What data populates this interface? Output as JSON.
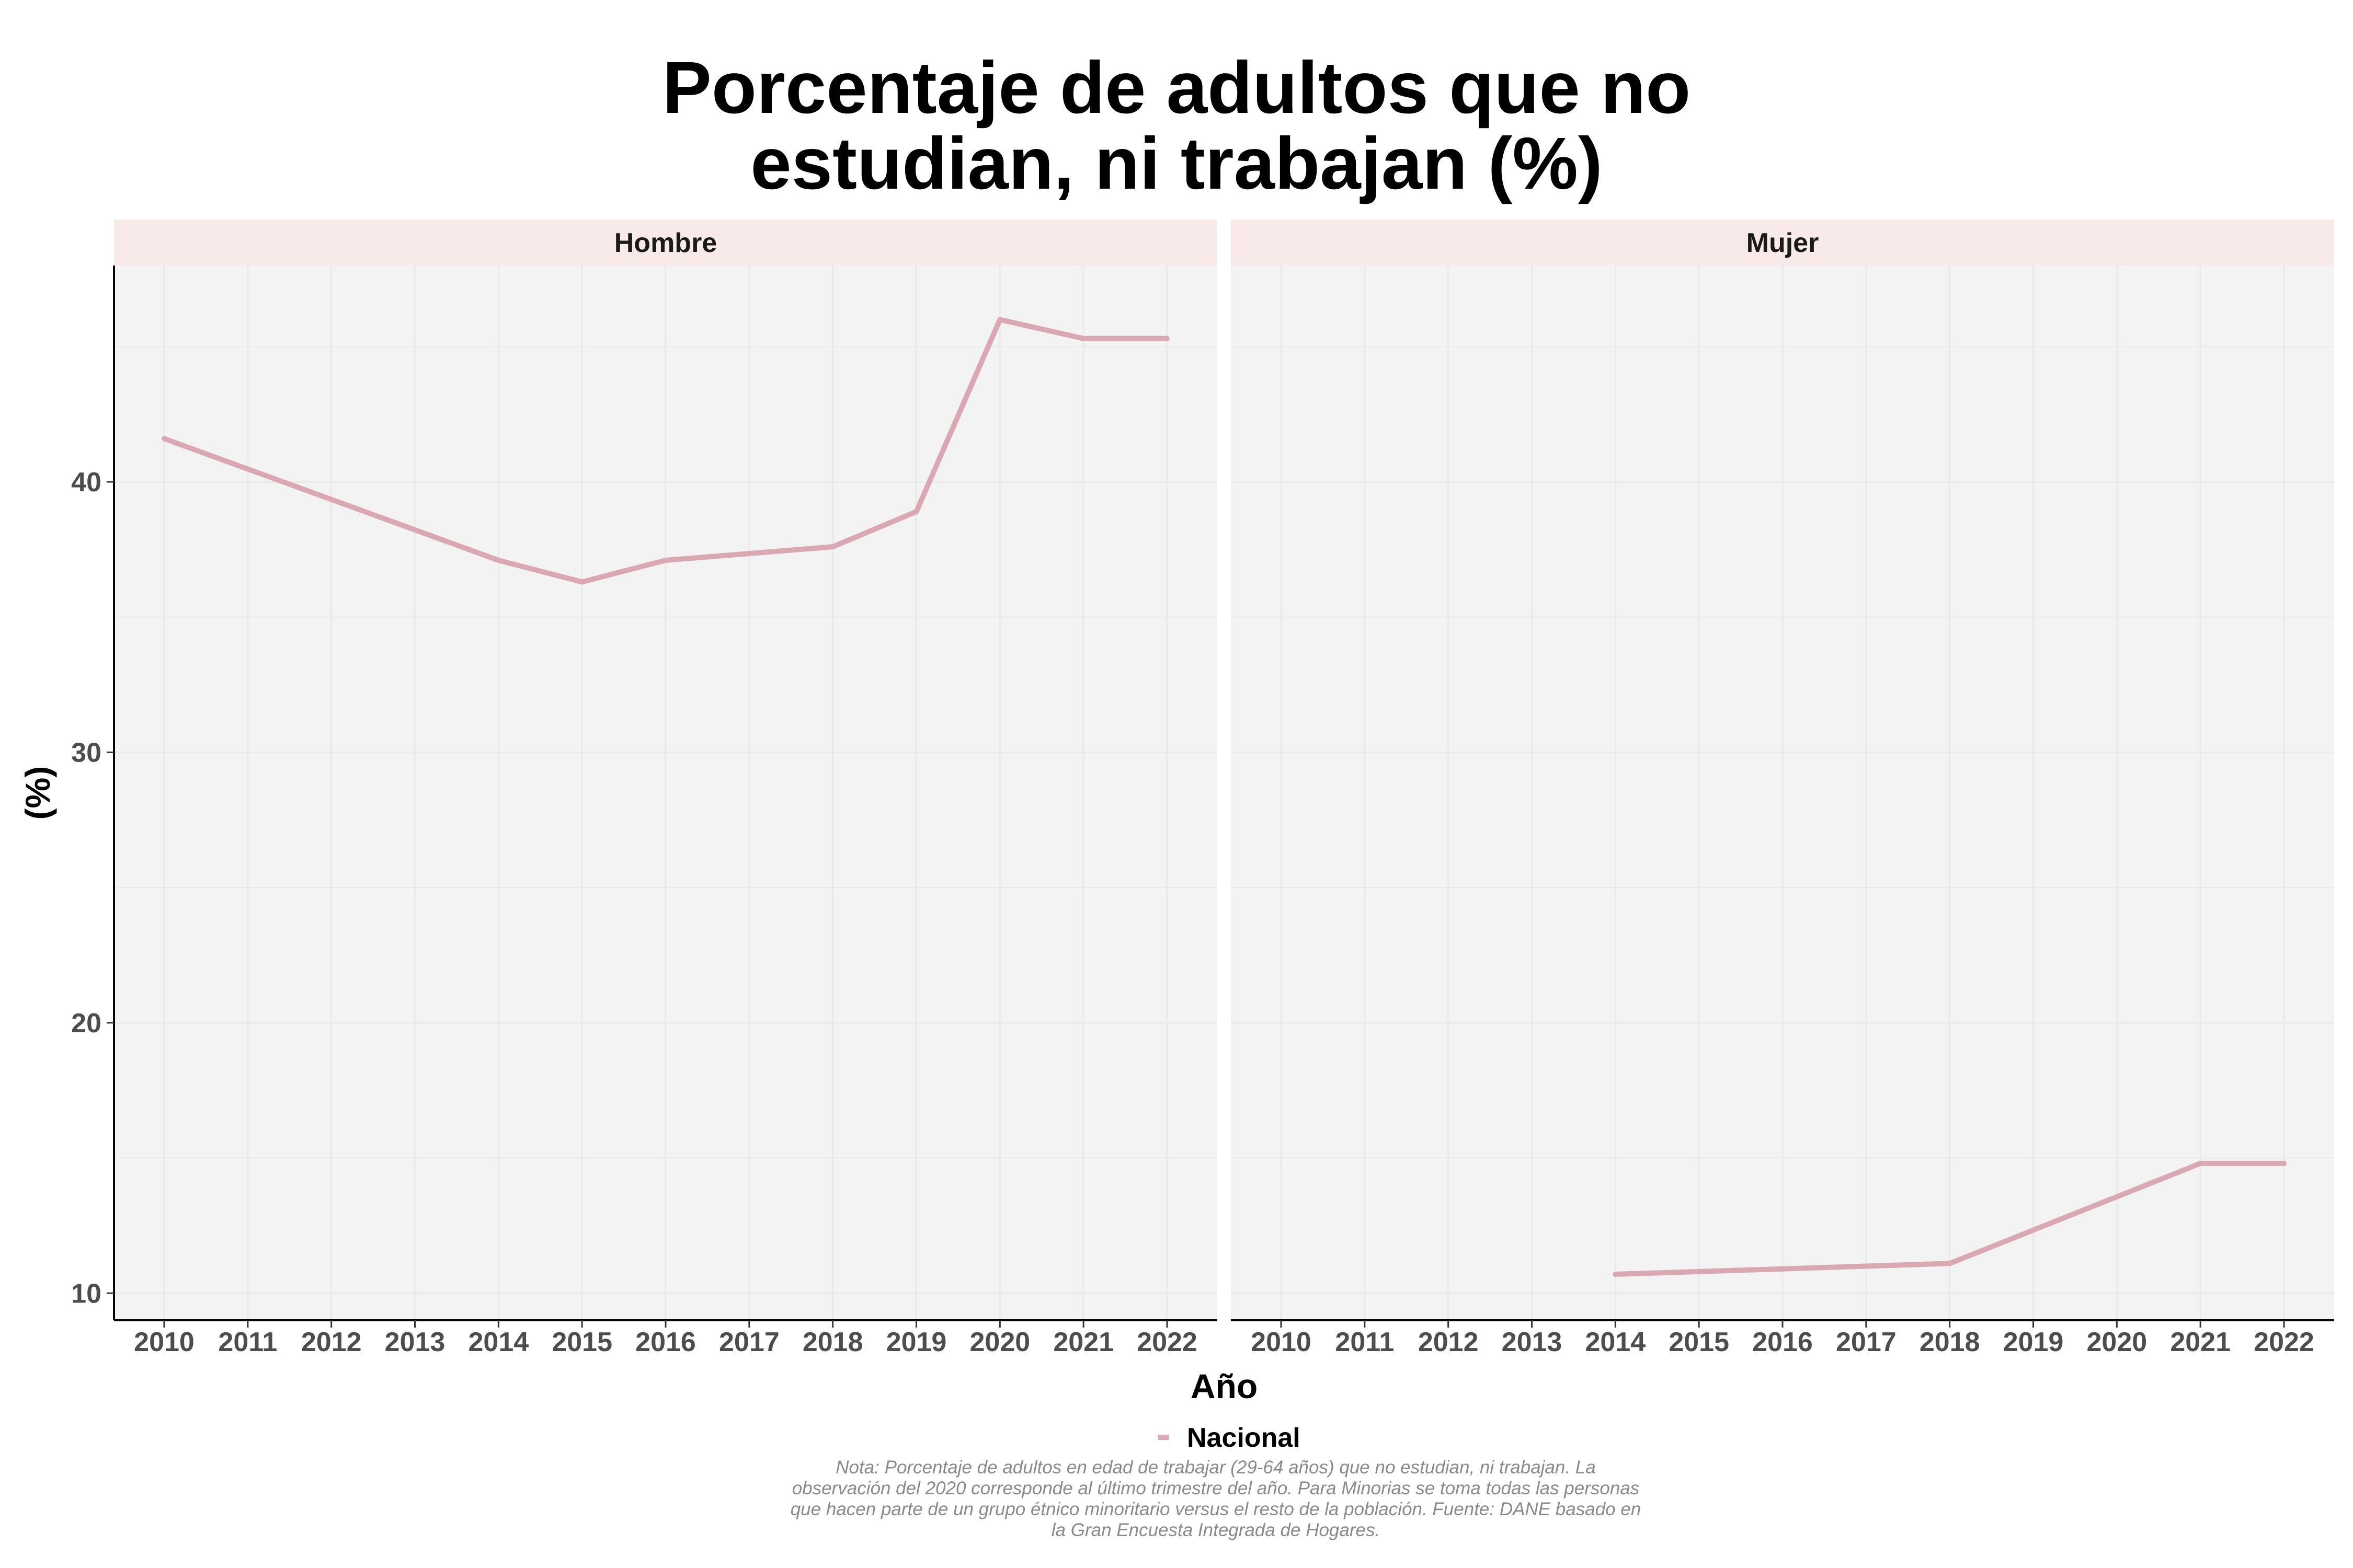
{
  "title_lines": [
    "Porcentaje de adultos que no",
    "estudian, ni trabajan (%)"
  ],
  "note": "Nota: Porcentaje de adultos en edad de trabajar (29-64 años) que no estudian, ni trabajan. La observación del 2020 corresponde al último trimestre del año. Para Minorias se toma todas las personas que hacen parte de un grupo étnico minoritario versus el resto de la población. Fuente: DANE basado en la Gran Encuesta Integrada de Hogares.",
  "colors": {
    "line": "#d9a8b2",
    "panel_bg": "#f3f3f3",
    "strip_bg": "#f9eaea",
    "grid": "#e9e9e9"
  },
  "chart_data": {
    "type": "line",
    "xlabel": "Año",
    "ylabel": "(%)",
    "ylim": [
      9,
      48
    ],
    "yticks": [
      10,
      20,
      30,
      40
    ],
    "x": [
      2010,
      2011,
      2012,
      2013,
      2014,
      2015,
      2016,
      2017,
      2018,
      2019,
      2020,
      2021,
      2022
    ],
    "legend": {
      "position": "bottom",
      "entries": [
        "Nacional"
      ]
    },
    "grid": true,
    "facets": [
      {
        "name": "Hombre",
        "series": [
          {
            "name": "Nacional",
            "points": [
              [
                2010,
                41.6
              ],
              [
                2014,
                37.1
              ],
              [
                2015,
                36.3
              ],
              [
                2016,
                37.1
              ],
              [
                2018,
                37.6
              ],
              [
                2019,
                38.9
              ],
              [
                2020,
                46.0
              ],
              [
                2021,
                45.3
              ],
              [
                2022,
                45.3
              ]
            ]
          }
        ]
      },
      {
        "name": "Mujer",
        "series": [
          {
            "name": "Nacional",
            "points": [
              [
                2014,
                10.7
              ],
              [
                2016,
                10.9
              ],
              [
                2018,
                11.1
              ],
              [
                2021,
                14.8
              ],
              [
                2022,
                14.8
              ]
            ]
          }
        ]
      }
    ]
  }
}
